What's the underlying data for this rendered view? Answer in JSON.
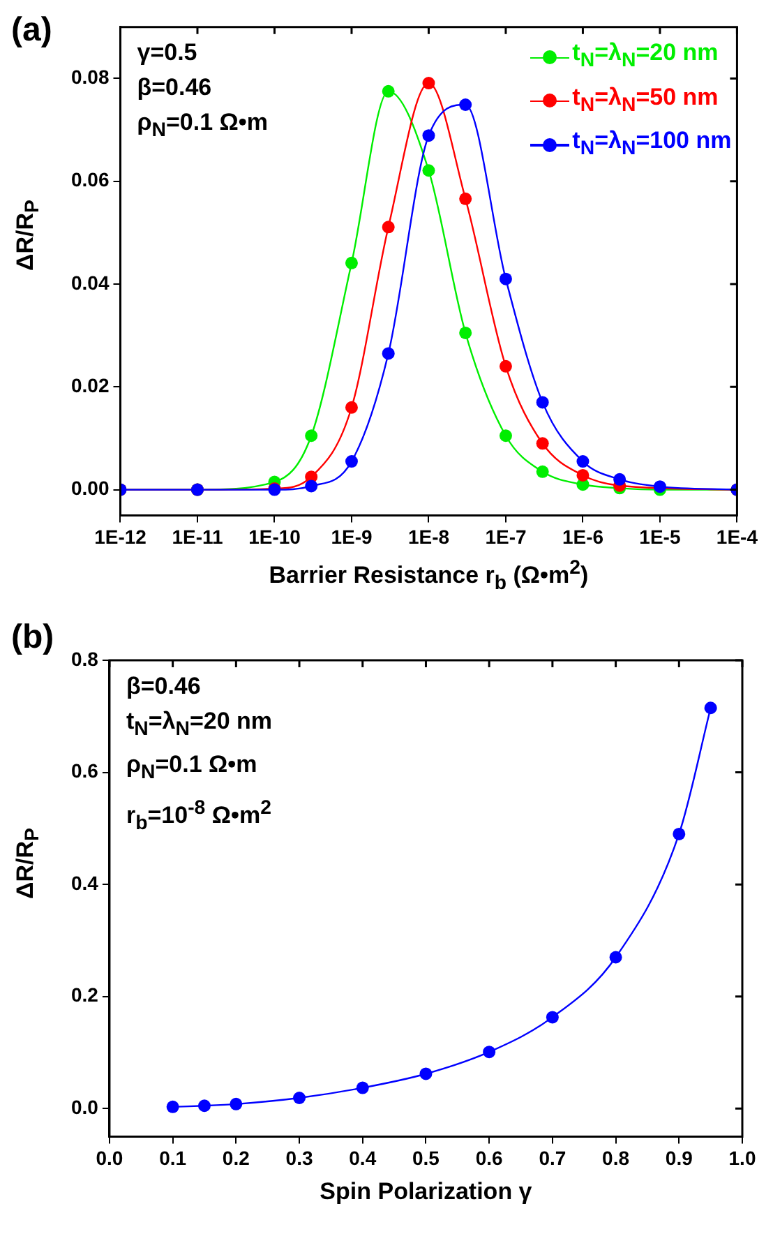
{
  "chart_data": [
    {
      "type": "line",
      "title": "(a)",
      "xlabel": "Barrier Resistance r$_{b}$ (Ω•m$^{2}$)",
      "ylabel": "ΔR/R$_{P}$",
      "log": "x",
      "marker": "circle",
      "legend": "top right",
      "annotations": [
        "γ=0.5",
        "β=0.46",
        "ρ$_{N}$=0.1 Ω•m"
      ],
      "x": [
        1e-12,
        1e-11,
        1e-10,
        3e-10,
        1e-09,
        3e-09,
        1e-08,
        3e-08,
        1e-07,
        3e-07,
        1e-06,
        3e-06,
        1e-05,
        0.0001
      ],
      "series": [
        {
          "name": "t$_{N}$=λ$_{N}$=20 nm",
          "color": "#00ee00",
          "values": [
            0,
            0,
            0.0015,
            0.0105,
            0.0441,
            0.0775,
            0.0621,
            0.0305,
            0.0105,
            0.0035,
            0.001,
            0.0003,
            0,
            0
          ]
        },
        {
          "name": "t$_{N}$=λ$_{N}$=50 nm",
          "color": "#ff0000",
          "values": [
            0,
            0,
            0.0002,
            0.0025,
            0.016,
            0.0511,
            0.0791,
            0.0566,
            0.024,
            0.009,
            0.0028,
            0.0008,
            null,
            0
          ]
        },
        {
          "name": "t$_{N}$=λ$_{N}$=100 nm",
          "color": "#0000ff",
          "values": [
            0,
            0,
            0,
            0.0007,
            0.0055,
            0.0265,
            0.0689,
            0.0749,
            0.041,
            0.017,
            0.0055,
            0.002,
            0.0006,
            0
          ]
        }
      ],
      "xlim": [
        1e-12,
        0.0001
      ],
      "xticks": [
        {
          "value": 1e-12,
          "label": "1E-12"
        },
        {
          "value": 1e-11,
          "label": "1E-11"
        },
        {
          "value": 1e-10,
          "label": "1E-10"
        },
        {
          "value": 1e-09,
          "label": "1E-9"
        },
        {
          "value": 1e-08,
          "label": "1E-8"
        },
        {
          "value": 1e-07,
          "label": "1E-7"
        },
        {
          "value": 1e-06,
          "label": "1E-6"
        },
        {
          "value": 1e-05,
          "label": "1E-5"
        },
        {
          "value": 0.0001,
          "label": "1E-4"
        }
      ],
      "ylim": [
        -0.005,
        0.09
      ],
      "yticks": [
        {
          "value": 0,
          "label": "0.00"
        },
        {
          "value": 0.02,
          "label": "0.02"
        },
        {
          "value": 0.04,
          "label": "0.04"
        },
        {
          "value": 0.06,
          "label": "0.06"
        },
        {
          "value": 0.08,
          "label": "0.08"
        }
      ]
    },
    {
      "type": "line",
      "title": "(b)",
      "xlabel": "Spin Polarization γ",
      "ylabel": "ΔR/R$_{P}$",
      "marker": "circle",
      "annotations": [
        "β=0.46",
        "t$_{N}$=λ$_{N}$=20 nm",
        "ρ$_{N}$=0.1 Ω•m",
        "r$_{b}$=10$^{-8}$ Ω•m$^{2}$"
      ],
      "x": [
        0.1,
        0.15,
        0.2,
        0.3,
        0.4,
        0.5,
        0.6,
        0.7,
        0.8,
        0.9,
        0.95
      ],
      "series": [
        {
          "color": "#0000ff",
          "values": [
            0.003,
            0.005,
            0.008,
            0.019,
            0.037,
            0.062,
            0.101,
            0.163,
            0.27,
            0.49,
            0.715
          ]
        }
      ],
      "xlim": [
        0,
        1
      ],
      "xticks": [
        {
          "value": 0,
          "label": "0.0"
        },
        0.1,
        0.2,
        0.3,
        0.4,
        0.5,
        0.6,
        0.7,
        0.8,
        0.9,
        {
          "value": 1,
          "label": "1.0"
        }
      ],
      "ylim": [
        -0.05,
        0.8
      ],
      "yticks": [
        {
          "value": 0,
          "label": "0.0"
        },
        0.2,
        0.4,
        0.6,
        0.8
      ]
    }
  ]
}
